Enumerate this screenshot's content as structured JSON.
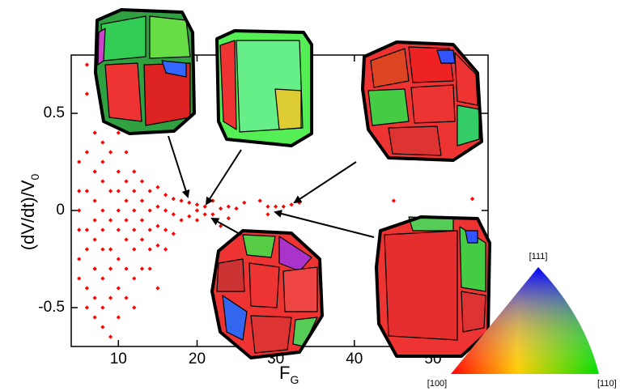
{
  "chart_data": {
    "type": "scatter",
    "xlabel": {
      "text": "F",
      "subscript": "G"
    },
    "ylabel": {
      "text": "(dV/dt)/V",
      "subscript": "0"
    },
    "xlim": [
      4,
      57
    ],
    "ylim": [
      -0.7,
      0.8
    ],
    "xticks": [
      10,
      20,
      30,
      40,
      50
    ],
    "yticks": [
      -0.5,
      0,
      0.5
    ],
    "color": "#ff0000",
    "x": [
      5,
      5,
      5,
      5,
      5,
      5,
      6,
      6,
      6,
      6,
      6,
      6,
      6,
      6,
      7,
      7,
      7,
      7,
      7,
      7,
      7,
      7,
      7,
      8,
      8,
      8,
      8,
      8,
      8,
      8,
      8,
      8,
      9,
      9,
      9,
      9,
      9,
      9,
      9,
      9,
      10,
      10,
      10,
      10,
      10,
      10,
      10,
      10,
      11,
      11,
      11,
      11,
      11,
      11,
      11,
      12,
      12,
      12,
      12,
      12,
      12,
      12,
      13,
      13,
      13,
      13,
      13,
      14,
      14,
      14,
      14,
      14,
      15,
      15,
      15,
      15,
      15,
      16,
      16,
      16,
      16,
      17,
      17,
      17,
      18,
      18,
      19,
      19,
      20,
      20,
      20,
      21,
      21,
      22,
      22,
      23,
      23,
      24,
      24,
      25,
      26,
      28,
      29,
      29,
      30,
      31,
      32,
      33,
      45,
      55
    ],
    "values": [
      -0.25,
      -0.1,
      0.0,
      0.1,
      0.25,
      -0.35,
      0.75,
      0.6,
      0.3,
      0.1,
      -0.1,
      -0.2,
      -0.4,
      -0.5,
      0.4,
      0.2,
      0.05,
      -0.05,
      -0.15,
      -0.3,
      -0.45,
      -0.55,
      -0.3,
      0.35,
      0.15,
      0.0,
      -0.1,
      -0.2,
      -0.35,
      -0.5,
      -0.6,
      0.25,
      0.5,
      0.3,
      0.1,
      -0.05,
      -0.2,
      -0.3,
      -0.45,
      -0.65,
      0.2,
      0.1,
      0.0,
      -0.1,
      -0.25,
      -0.4,
      -0.55,
      0.4,
      0.3,
      0.15,
      0.05,
      -0.05,
      -0.15,
      -0.3,
      -0.45,
      0.2,
      0.1,
      0.0,
      -0.1,
      -0.2,
      -0.35,
      -0.5,
      0.15,
      0.05,
      -0.05,
      -0.15,
      -0.3,
      0.1,
      0.0,
      -0.1,
      -0.2,
      -0.3,
      0.12,
      0.02,
      -0.08,
      -0.18,
      -0.4,
      0.08,
      0.0,
      -0.1,
      -0.2,
      0.06,
      -0.02,
      -0.12,
      0.05,
      -0.05,
      0.04,
      -0.03,
      0.03,
      0.0,
      -0.05,
      0.02,
      -0.02,
      0.05,
      -0.02,
      0.01,
      -0.08,
      0.02,
      -0.04,
      0.01,
      0.04,
      0.05,
      -0.02,
      0.02,
      0.02,
      0.02,
      0.03,
      0.04,
      0.05,
      0.06
    ]
  },
  "color_key": {
    "top": "[111]",
    "left": "[100]",
    "right": "[110]"
  }
}
